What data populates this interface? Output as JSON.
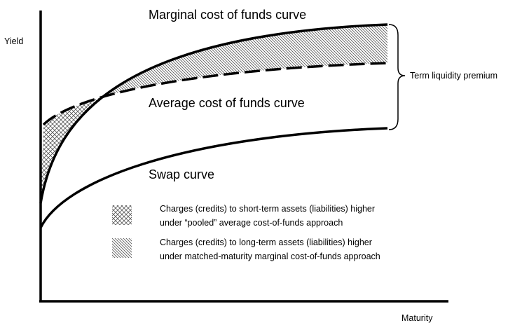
{
  "axes": {
    "y_label": "Yield",
    "x_label": "Maturity"
  },
  "curves": {
    "marginal": "Marginal cost of funds curve",
    "average": "Average cost of funds curve",
    "swap": "Swap curve"
  },
  "annotation": "Term liquidity premium",
  "legend": [
    {
      "lines": [
        "Charges (credits) to short-term assets (liabilities) higher",
        "under “pooled” average cost-of-funds approach"
      ]
    },
    {
      "lines": [
        "Charges (credits) to long-term assets (liabilities) higher",
        "under matched-maturity marginal cost-of-funds approach"
      ]
    }
  ]
}
